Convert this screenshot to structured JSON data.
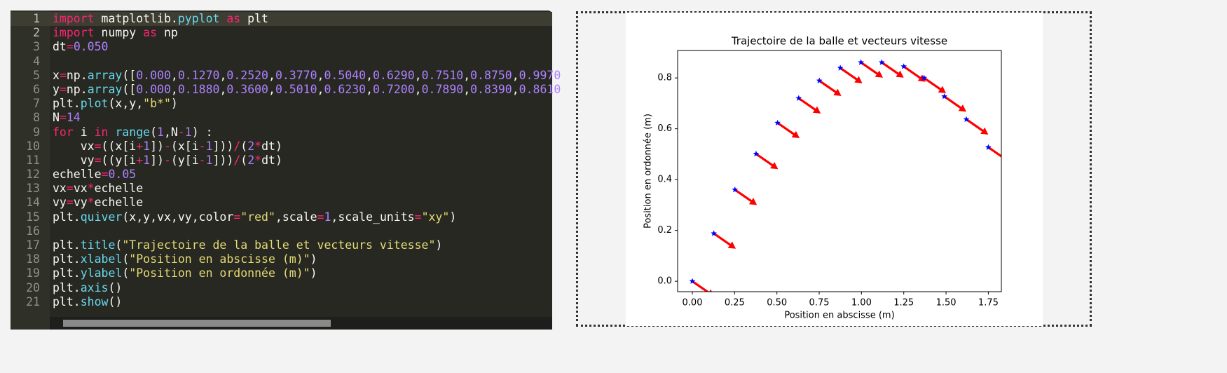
{
  "editor": {
    "lines": [
      {
        "number": 1,
        "tokens": [
          {
            "text": "import",
            "color": "#f92672"
          },
          " matplotlib.",
          {
            "text": "pyplot",
            "color": "#66d9ef"
          },
          " ",
          {
            "text": "as",
            "color": "#f92672"
          },
          " plt"
        ]
      },
      {
        "number": 2,
        "tokens": [
          {
            "text": "import",
            "color": "#f92672"
          },
          " numpy ",
          {
            "text": "as",
            "color": "#f92672"
          },
          " np"
        ]
      },
      {
        "number": 3,
        "tokens": [
          "dt",
          {
            "text": "=",
            "color": "#f92672"
          },
          {
            "text": "0.050",
            "color": "#ae81ff"
          }
        ]
      },
      {
        "number": 4,
        "tokens": []
      },
      {
        "number": 5,
        "tokens": [
          "x",
          {
            "text": "=",
            "color": "#f92672"
          },
          "np.",
          {
            "text": "array",
            "color": "#66d9ef"
          },
          "([",
          {
            "text": "0.000",
            "color": "#ae81ff"
          },
          ",",
          {
            "text": "0.1270",
            "color": "#ae81ff"
          },
          ",",
          {
            "text": "0.2520",
            "color": "#ae81ff"
          },
          ",",
          {
            "text": "0.3770",
            "color": "#ae81ff"
          },
          ",",
          {
            "text": "0.5040",
            "color": "#ae81ff"
          },
          ",",
          {
            "text": "0.6290",
            "color": "#ae81ff"
          },
          ",",
          {
            "text": "0.7510",
            "color": "#ae81ff"
          },
          ",",
          {
            "text": "0.8750",
            "color": "#ae81ff"
          },
          ",",
          {
            "text": "0.9970",
            "color": "#ae81ff"
          }
        ]
      },
      {
        "number": 6,
        "tokens": [
          "y",
          {
            "text": "=",
            "color": "#f92672"
          },
          "np.",
          {
            "text": "array",
            "color": "#66d9ef"
          },
          "([",
          {
            "text": "0.000",
            "color": "#ae81ff"
          },
          ",",
          {
            "text": "0.1880",
            "color": "#ae81ff"
          },
          ",",
          {
            "text": "0.3600",
            "color": "#ae81ff"
          },
          ",",
          {
            "text": "0.5010",
            "color": "#ae81ff"
          },
          ",",
          {
            "text": "0.6230",
            "color": "#ae81ff"
          },
          ",",
          {
            "text": "0.7200",
            "color": "#ae81ff"
          },
          ",",
          {
            "text": "0.7890",
            "color": "#ae81ff"
          },
          ",",
          {
            "text": "0.8390",
            "color": "#ae81ff"
          },
          ",",
          {
            "text": "0.8610",
            "color": "#ae81ff"
          }
        ]
      },
      {
        "number": 7,
        "tokens": [
          "plt.",
          {
            "text": "plot",
            "color": "#66d9ef"
          },
          "(x,y,",
          {
            "text": "\"b*\"",
            "color": "#e6db74"
          },
          ")"
        ]
      },
      {
        "number": 8,
        "tokens": [
          "N",
          {
            "text": "=",
            "color": "#f92672"
          },
          {
            "text": "14",
            "color": "#ae81ff"
          }
        ]
      },
      {
        "number": 9,
        "tokens": [
          {
            "text": "for",
            "color": "#f92672"
          },
          " i ",
          {
            "text": "in",
            "color": "#f92672"
          },
          " ",
          {
            "text": "range",
            "color": "#66d9ef"
          },
          "(",
          {
            "text": "1",
            "color": "#ae81ff"
          },
          ",N",
          {
            "text": "-",
            "color": "#f92672"
          },
          {
            "text": "1",
            "color": "#ae81ff"
          },
          ") :"
        ]
      },
      {
        "number": 10,
        "tokens": [
          "    vx",
          {
            "text": "=",
            "color": "#f92672"
          },
          "((x[i",
          {
            "text": "+",
            "color": "#f92672"
          },
          {
            "text": "1",
            "color": "#ae81ff"
          },
          "])",
          {
            "text": "-",
            "color": "#f92672"
          },
          "(x[i",
          {
            "text": "-",
            "color": "#f92672"
          },
          {
            "text": "1",
            "color": "#ae81ff"
          },
          "]))",
          {
            "text": "/",
            "color": "#f92672"
          },
          "(",
          {
            "text": "2",
            "color": "#ae81ff"
          },
          {
            "text": "*",
            "color": "#f92672"
          },
          "dt)"
        ]
      },
      {
        "number": 11,
        "tokens": [
          "    vy",
          {
            "text": "=",
            "color": "#f92672"
          },
          "((y[i",
          {
            "text": "+",
            "color": "#f92672"
          },
          {
            "text": "1",
            "color": "#ae81ff"
          },
          "])",
          {
            "text": "-",
            "color": "#f92672"
          },
          "(y[i",
          {
            "text": "-",
            "color": "#f92672"
          },
          {
            "text": "1",
            "color": "#ae81ff"
          },
          "]))",
          {
            "text": "/",
            "color": "#f92672"
          },
          "(",
          {
            "text": "2",
            "color": "#ae81ff"
          },
          {
            "text": "*",
            "color": "#f92672"
          },
          "dt)"
        ]
      },
      {
        "number": 12,
        "tokens": [
          "echelle",
          {
            "text": "=",
            "color": "#f92672"
          },
          {
            "text": "0.05",
            "color": "#ae81ff"
          }
        ]
      },
      {
        "number": 13,
        "tokens": [
          "vx",
          {
            "text": "=",
            "color": "#f92672"
          },
          "vx",
          {
            "text": "*",
            "color": "#f92672"
          },
          "echelle"
        ]
      },
      {
        "number": 14,
        "tokens": [
          "vy",
          {
            "text": "=",
            "color": "#f92672"
          },
          "vy",
          {
            "text": "*",
            "color": "#f92672"
          },
          "echelle"
        ]
      },
      {
        "number": 15,
        "tokens": [
          "plt.",
          {
            "text": "quiver",
            "color": "#66d9ef"
          },
          "(x,y,vx,vy,color",
          {
            "text": "=",
            "color": "#f92672"
          },
          {
            "text": "\"red\"",
            "color": "#e6db74"
          },
          ",scale",
          {
            "text": "=",
            "color": "#f92672"
          },
          {
            "text": "1",
            "color": "#ae81ff"
          },
          ",scale_units",
          {
            "text": "=",
            "color": "#f92672"
          },
          {
            "text": "\"xy\"",
            "color": "#e6db74"
          },
          ")"
        ]
      },
      {
        "number": 16,
        "tokens": []
      },
      {
        "number": 17,
        "tokens": [
          "plt.",
          {
            "text": "title",
            "color": "#66d9ef"
          },
          "(",
          {
            "text": "\"Trajectoire de la balle et vecteurs vitesse\"",
            "color": "#e6db74"
          },
          ")"
        ]
      },
      {
        "number": 18,
        "tokens": [
          "plt.",
          {
            "text": "xlabel",
            "color": "#66d9ef"
          },
          "(",
          {
            "text": "\"Position en abscisse (m)\"",
            "color": "#e6db74"
          },
          ")"
        ]
      },
      {
        "number": 19,
        "tokens": [
          "plt.",
          {
            "text": "ylabel",
            "color": "#66d9ef"
          },
          "(",
          {
            "text": "\"Position en ordonnée (m)\"",
            "color": "#e6db74"
          },
          ")"
        ]
      },
      {
        "number": 20,
        "tokens": [
          "plt.",
          {
            "text": "axis",
            "color": "#66d9ef"
          },
          "()"
        ]
      },
      {
        "number": 21,
        "tokens": [
          "plt.",
          {
            "text": "show",
            "color": "#66d9ef"
          },
          "()"
        ]
      }
    ]
  },
  "chart_data": {
    "type": "quiver",
    "title": "Trajectoire de la balle et vecteurs vitesse",
    "xlabel": "Position en abscisse (m)",
    "ylabel": "Position en ordonnée (m)",
    "x": [
      0.0,
      0.127,
      0.252,
      0.377,
      0.504,
      0.629,
      0.751,
      0.875,
      0.997,
      1.12,
      1.25,
      1.37,
      1.49,
      1.62,
      1.75
    ],
    "y": [
      0.0,
      0.188,
      0.36,
      0.501,
      0.623,
      0.72,
      0.789,
      0.839,
      0.861,
      0.861,
      0.845,
      0.8,
      0.727,
      0.637,
      0.527
    ],
    "u": [
      0.13,
      0.13,
      0.13,
      0.13,
      0.13,
      0.13,
      0.13,
      0.13,
      0.13,
      0.13,
      0.13,
      0.13,
      0.13,
      0.13,
      0.13
    ],
    "v": [
      -0.06,
      -0.06,
      -0.06,
      -0.06,
      -0.06,
      -0.06,
      -0.06,
      -0.06,
      -0.06,
      -0.06,
      -0.06,
      -0.06,
      -0.06,
      -0.06,
      -0.06
    ],
    "marker_color": "#0000ff",
    "arrow_color": "#ff0000",
    "xlim": [
      -0.087,
      1.827
    ],
    "ylim": [
      -0.041,
      0.908
    ],
    "xticks": [
      {
        "value": 0,
        "label": "0.00"
      },
      {
        "value": 0.25,
        "label": "0.25"
      },
      {
        "value": 0.5,
        "label": "0.50"
      },
      {
        "value": 0.75,
        "label": "0.75"
      },
      {
        "value": 1,
        "label": "1.00"
      },
      {
        "value": 1.25,
        "label": "1.25"
      },
      {
        "value": 1.5,
        "label": "1.50"
      },
      {
        "value": 1.75,
        "label": "1.75"
      }
    ],
    "yticks": [
      {
        "value": 0,
        "label": "0.0"
      },
      {
        "value": 0.2,
        "label": "0.2"
      },
      {
        "value": 0.4,
        "label": "0.4"
      },
      {
        "value": 0.6,
        "label": "0.6"
      },
      {
        "value": 0.8,
        "label": "0.8"
      }
    ]
  }
}
